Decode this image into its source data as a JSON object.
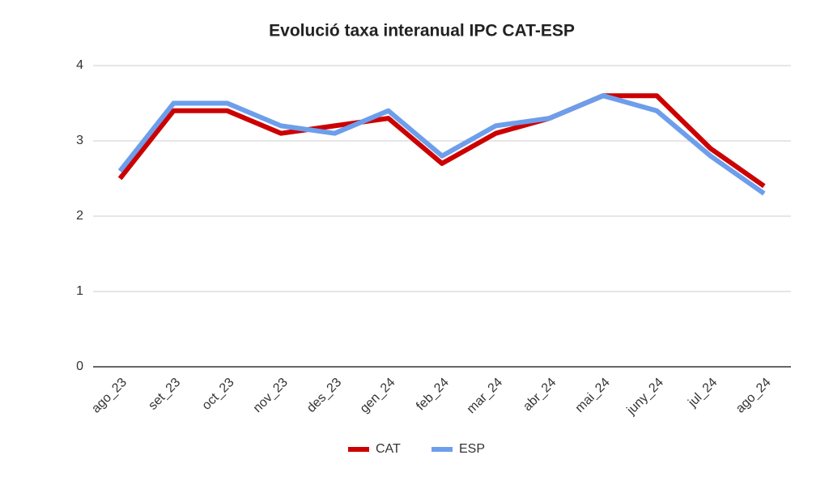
{
  "chart_data": {
    "type": "line",
    "title": "Evolució taxa interanual IPC CAT-ESP",
    "categories": [
      "ago_23",
      "set_23",
      "oct_23",
      "nov_23",
      "des_23",
      "gen_24",
      "feb_24",
      "mar_24",
      "abr_24",
      "mai_24",
      "juny_24",
      "jul_24",
      "ago_24"
    ],
    "series": [
      {
        "name": "CAT",
        "color": "#cc0000",
        "values": [
          2.5,
          3.4,
          3.4,
          3.1,
          3.2,
          3.3,
          2.7,
          3.1,
          3.3,
          3.6,
          3.6,
          2.9,
          2.4
        ]
      },
      {
        "name": "ESP",
        "color": "#6d9eeb",
        "values": [
          2.6,
          3.5,
          3.5,
          3.2,
          3.1,
          3.4,
          2.8,
          3.2,
          3.3,
          3.6,
          3.4,
          2.8,
          2.3
        ]
      }
    ],
    "ylim": [
      0,
      4
    ],
    "yticks": [
      0,
      1,
      2,
      3,
      4
    ],
    "grid": true,
    "legend": "bottom"
  }
}
